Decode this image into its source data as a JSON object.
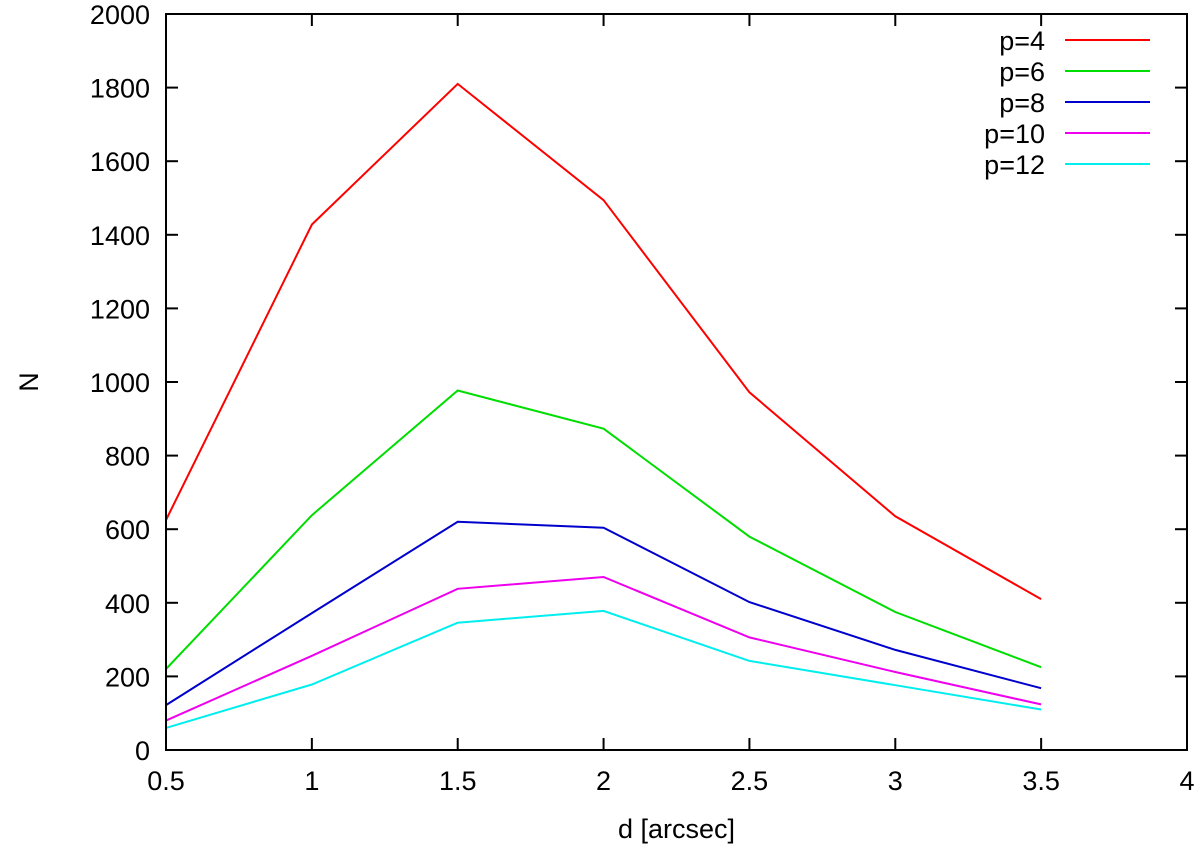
{
  "chart_data": {
    "type": "line",
    "title": "",
    "xlabel": "d [arcsec]",
    "ylabel": "N",
    "xlim": [
      0.5,
      4
    ],
    "ylim": [
      0,
      2000
    ],
    "xticks": [
      0.5,
      1,
      1.5,
      2,
      2.5,
      3,
      3.5,
      4
    ],
    "xtick_labels": [
      "0.5",
      "1",
      "1.5",
      "2",
      "2.5",
      "3",
      "3.5",
      "4"
    ],
    "yticks": [
      0,
      200,
      400,
      600,
      800,
      1000,
      1200,
      1400,
      1600,
      1800,
      2000
    ],
    "ytick_labels": [
      "0",
      "200",
      "400",
      "600",
      "800",
      "1000",
      "1200",
      "1400",
      "1600",
      "1800",
      "2000"
    ],
    "grid": false,
    "legend_position": "top-right",
    "x": [
      0.5,
      1,
      1.5,
      2,
      2.5,
      3,
      3.5
    ],
    "series": [
      {
        "name": "p=4",
        "color": "#ff0000",
        "values": [
          625,
          1428,
          1810,
          1494,
          972,
          635,
          410
        ]
      },
      {
        "name": "p=6",
        "color": "#00dd00",
        "values": [
          220,
          638,
          977,
          873,
          580,
          375,
          225
        ]
      },
      {
        "name": "p=8",
        "color": "#0000cc",
        "values": [
          122,
          372,
          620,
          604,
          402,
          272,
          168
        ]
      },
      {
        "name": "p=10",
        "color": "#ee00ee",
        "values": [
          80,
          256,
          438,
          470,
          306,
          212,
          124
        ]
      },
      {
        "name": "p=12",
        "color": "#00eeee",
        "values": [
          60,
          178,
          346,
          378,
          242,
          176,
          110
        ]
      }
    ]
  }
}
